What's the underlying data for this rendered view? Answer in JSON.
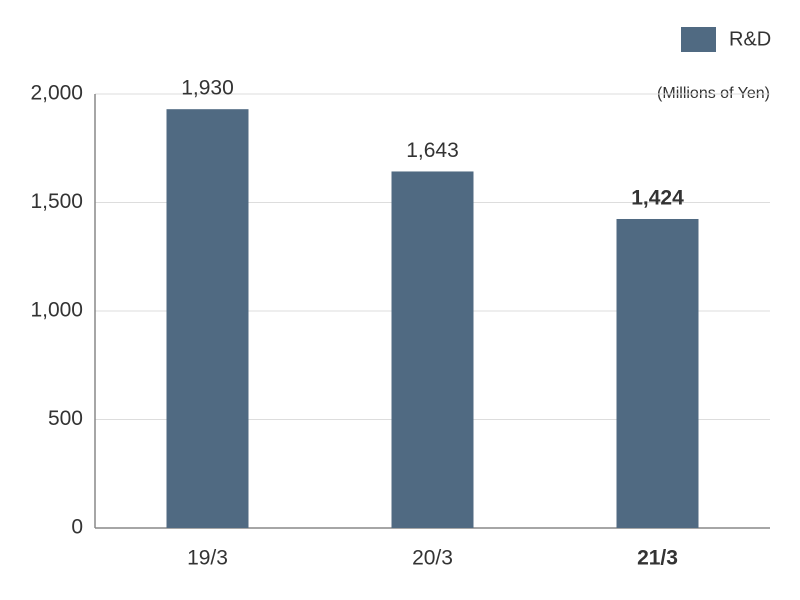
{
  "chart_data": {
    "type": "bar",
    "unit_label": "(Millions of Yen)",
    "categories": [
      "19/3",
      "20/3",
      "21/3"
    ],
    "series": [
      {
        "name": "R&D",
        "color": "#506a82",
        "values": [
          1930,
          1643,
          1424
        ],
        "value_labels": [
          "1,930",
          "1,643",
          "1,424"
        ]
      }
    ],
    "ylim": [
      0,
      2000
    ],
    "yticks": [
      0,
      500,
      {
        "value": 1000,
        "label": "1,000"
      },
      {
        "value": 1500,
        "label": "1,500"
      },
      {
        "value": 2000,
        "label": "2,000"
      }
    ],
    "grid": true,
    "legend": "top-right",
    "emphasis_index": 2
  }
}
